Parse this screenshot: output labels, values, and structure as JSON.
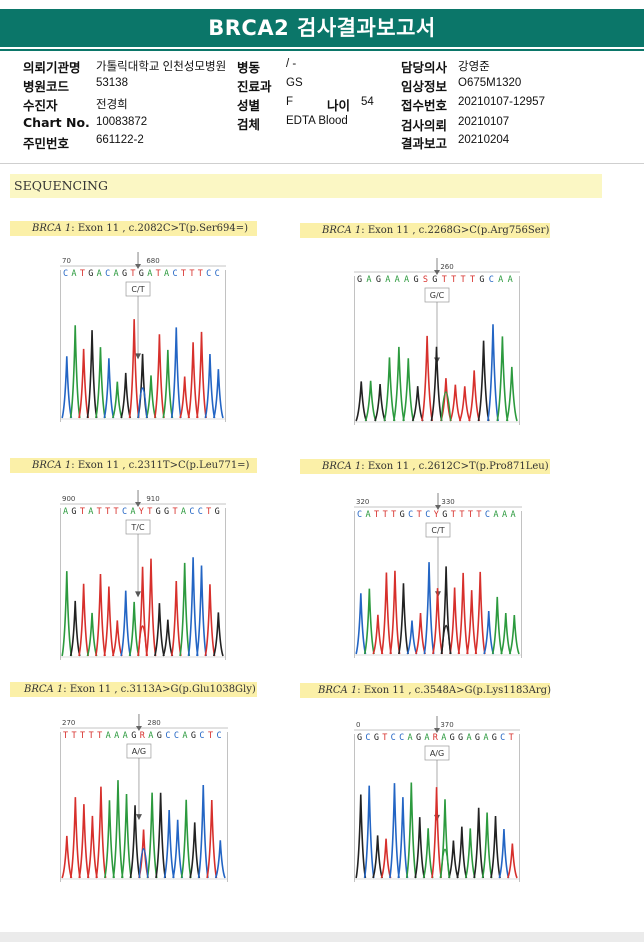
{
  "report": {
    "title": "BRCA2 검사결과보고서"
  },
  "patient": {
    "rows": [
      [
        {
          "label": "의뢰기관명",
          "value": "가톨릭대학교 인천성모병원"
        },
        {
          "label": "병동",
          "value": "/ -"
        },
        {
          "label": "담당의사",
          "value": "강영준"
        }
      ],
      [
        {
          "label": "병원코드",
          "value": "53138"
        },
        {
          "label": "진료과",
          "value": "GS"
        },
        {
          "label": "임상정보",
          "value": "O675M1320"
        }
      ],
      [
        {
          "label": "수진자",
          "value": "전경희"
        },
        {
          "label": "성별",
          "value": "F"
        },
        {
          "label": "나이",
          "value": "54"
        },
        {
          "label": "접수번호",
          "value": "20210107-12957"
        }
      ],
      [
        {
          "label": "Chart No.",
          "value": "10083872"
        },
        {
          "label": "검체",
          "value": "EDTA Blood"
        },
        {
          "label": "검사의뢰",
          "value": "20210107"
        }
      ],
      [
        {
          "label": "주민번호",
          "value": "661122-2"
        },
        {
          "label": "결과보고",
          "value": "20210204"
        }
      ]
    ]
  },
  "section": {
    "title": "SEQUENCING"
  },
  "panels": [
    {
      "gene": "BRCA 1",
      "caption": ": Exon 11 , c.2082C>T(p.Ser694=)",
      "scale": [
        "70",
        "680"
      ],
      "seq": "CATGACAGTGATACTTTCC",
      "call": "C/T",
      "colors": {
        "A": "#2c9a3e",
        "C": "#2365c4",
        "G": "#222222",
        "T": "#d7302c"
      }
    },
    {
      "gene": "BRCA 1",
      "caption": ": Exon 11 , c.2268G>C(p.Arg756Ser)",
      "scale": [
        "",
        "260"
      ],
      "seq": "GAGAAAGSGTTTTGCAA",
      "call": "G/C",
      "colors": {
        "A": "#2c9a3e",
        "C": "#2365c4",
        "G": "#222222",
        "T": "#d7302c"
      }
    },
    {
      "gene": "BRCA 1",
      "caption": ": Exon 11 , c.2311T>C(p.Leu771=)",
      "scale": [
        "900",
        "910"
      ],
      "seq": "AGTATTTCAYTGGTACCTG",
      "call": "T/C",
      "colors": {
        "A": "#2c9a3e",
        "C": "#2365c4",
        "G": "#222222",
        "T": "#d7302c"
      }
    },
    {
      "gene": "BRCA 1",
      "caption": ": Exon 11 , c.2612C>T(p.Pro871Leu)",
      "scale": [
        "320",
        "330"
      ],
      "seq": "CATTTGCTCYGTTTTCAAA",
      "call": "C/T",
      "colors": {
        "A": "#2c9a3e",
        "C": "#2365c4",
        "G": "#222222",
        "T": "#d7302c"
      }
    },
    {
      "gene": "BRCA 1",
      "caption": ": Exon 11 , c.3113A>G(p.Glu1038Gly)",
      "scale": [
        "270",
        "280"
      ],
      "seq": "TTTTTAAAGRAGCCAGCTC",
      "call": "A/G",
      "colors": {
        "A": "#2c9a3e",
        "C": "#2365c4",
        "G": "#222222",
        "T": "#d7302c"
      }
    },
    {
      "gene": "BRCA 1",
      "caption": ": Exon 11 , c.3548A>G(p.Lys1183Arg)",
      "scale": [
        "0",
        "370"
      ],
      "seq": "GCGTCCAGARAGGAGAGCT",
      "call": "A/G",
      "colors": {
        "A": "#2c9a3e",
        "C": "#2365c4",
        "G": "#222222",
        "T": "#d7302c"
      }
    }
  ]
}
